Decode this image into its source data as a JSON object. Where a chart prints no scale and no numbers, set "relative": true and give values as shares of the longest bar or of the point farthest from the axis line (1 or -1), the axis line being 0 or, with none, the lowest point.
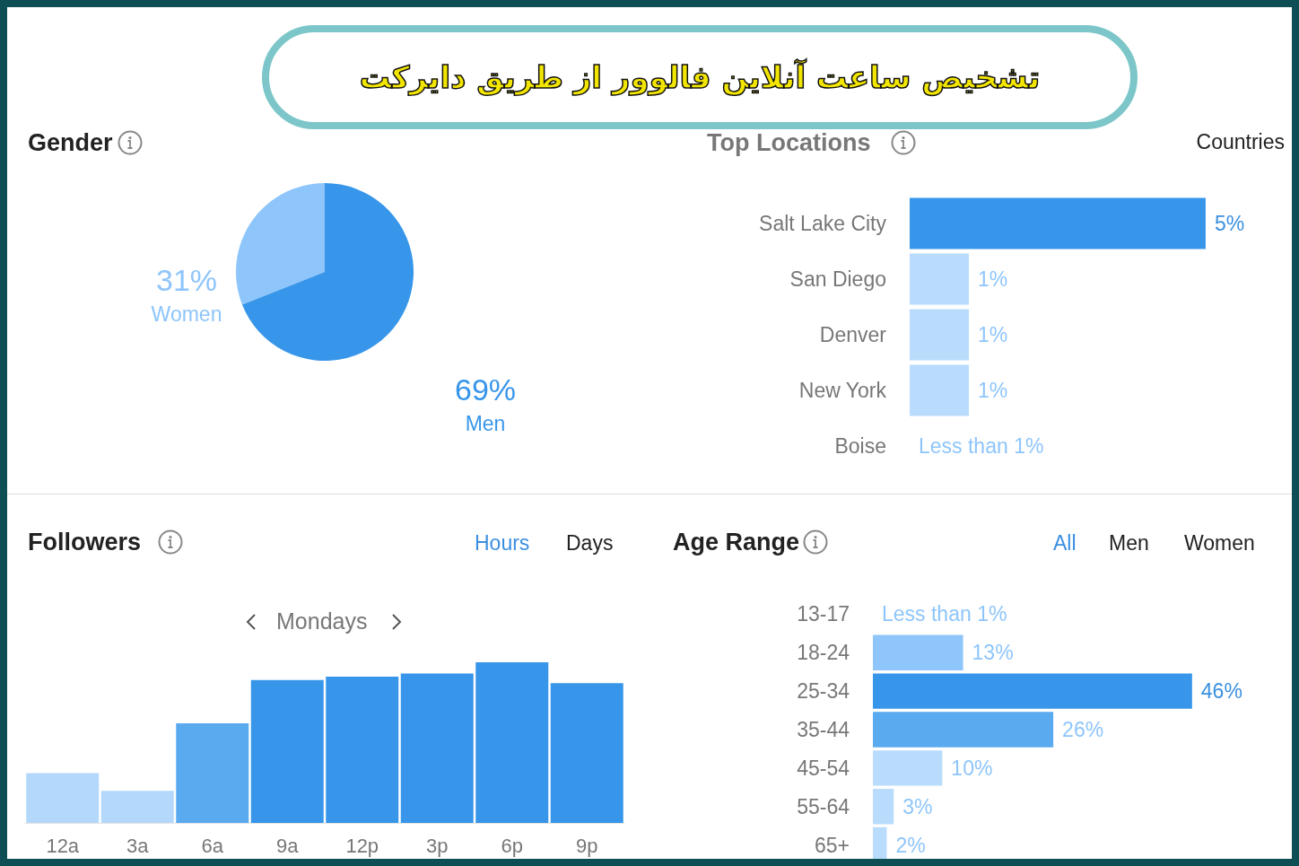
{
  "chart_data": [
    {
      "type": "other",
      "title": "تشخیص ساعت آنلاین فالوور از طریق دایرکت"
    },
    {
      "type": "pie",
      "title": "Gender",
      "categories": [
        "Women",
        "Men"
      ],
      "values": [
        31,
        69
      ],
      "colors": [
        "#8ec5fb",
        "#3796ea"
      ],
      "value_labels": [
        "31%",
        "69%"
      ]
    },
    {
      "type": "bar",
      "orientation": "horizontal",
      "title": "Top Locations",
      "annotations": [
        "Countries"
      ],
      "categories": [
        "Salt Lake City",
        "San Diego",
        "Denver",
        "New York",
        "Boise"
      ],
      "values": [
        5,
        1,
        1,
        1,
        0
      ],
      "colors": [
        "#3796ea",
        "#b9dcfd",
        "#b9dcfd",
        "#b9dcfd",
        "#b9dcfd"
      ],
      "value_labels": [
        "5%",
        "1%",
        "1%",
        "1%",
        "Less than 1%"
      ]
    },
    {
      "type": "bar",
      "relative": true,
      "title": "Followers",
      "annotations": [
        "Hours",
        "Days",
        "Mondays"
      ],
      "categories": [
        "12a",
        "3a",
        "6a",
        "9a",
        "12p",
        "3p",
        "6p",
        "9p"
      ],
      "values": [
        0.31,
        0.2,
        0.62,
        0.89,
        0.91,
        0.93,
        1,
        0.87
      ],
      "colors": [
        "#b3d8fc",
        "#b3d8fc",
        "#5aaaf0",
        "#3796ea",
        "#3796ea",
        "#3796ea",
        "#3796ea",
        "#3796ea"
      ]
    },
    {
      "type": "bar",
      "orientation": "horizontal",
      "title": "Age Range",
      "annotations": [
        "All",
        "Men",
        "Women"
      ],
      "categories": [
        "13-17",
        "18-24",
        "25-34",
        "35-44",
        "45-54",
        "55-64",
        "65+"
      ],
      "values": [
        0,
        13,
        46,
        26,
        10,
        3,
        2
      ],
      "colors": [
        "#b9dcfd",
        "#8ec5fb",
        "#3796ea",
        "#5aaaf0",
        "#b9dcfd",
        "#b9dcfd",
        "#b9dcfd"
      ],
      "value_labels": [
        "Less than 1%",
        "13%",
        "46%",
        "26%",
        "10%",
        "3%",
        "2%"
      ]
    }
  ]
}
